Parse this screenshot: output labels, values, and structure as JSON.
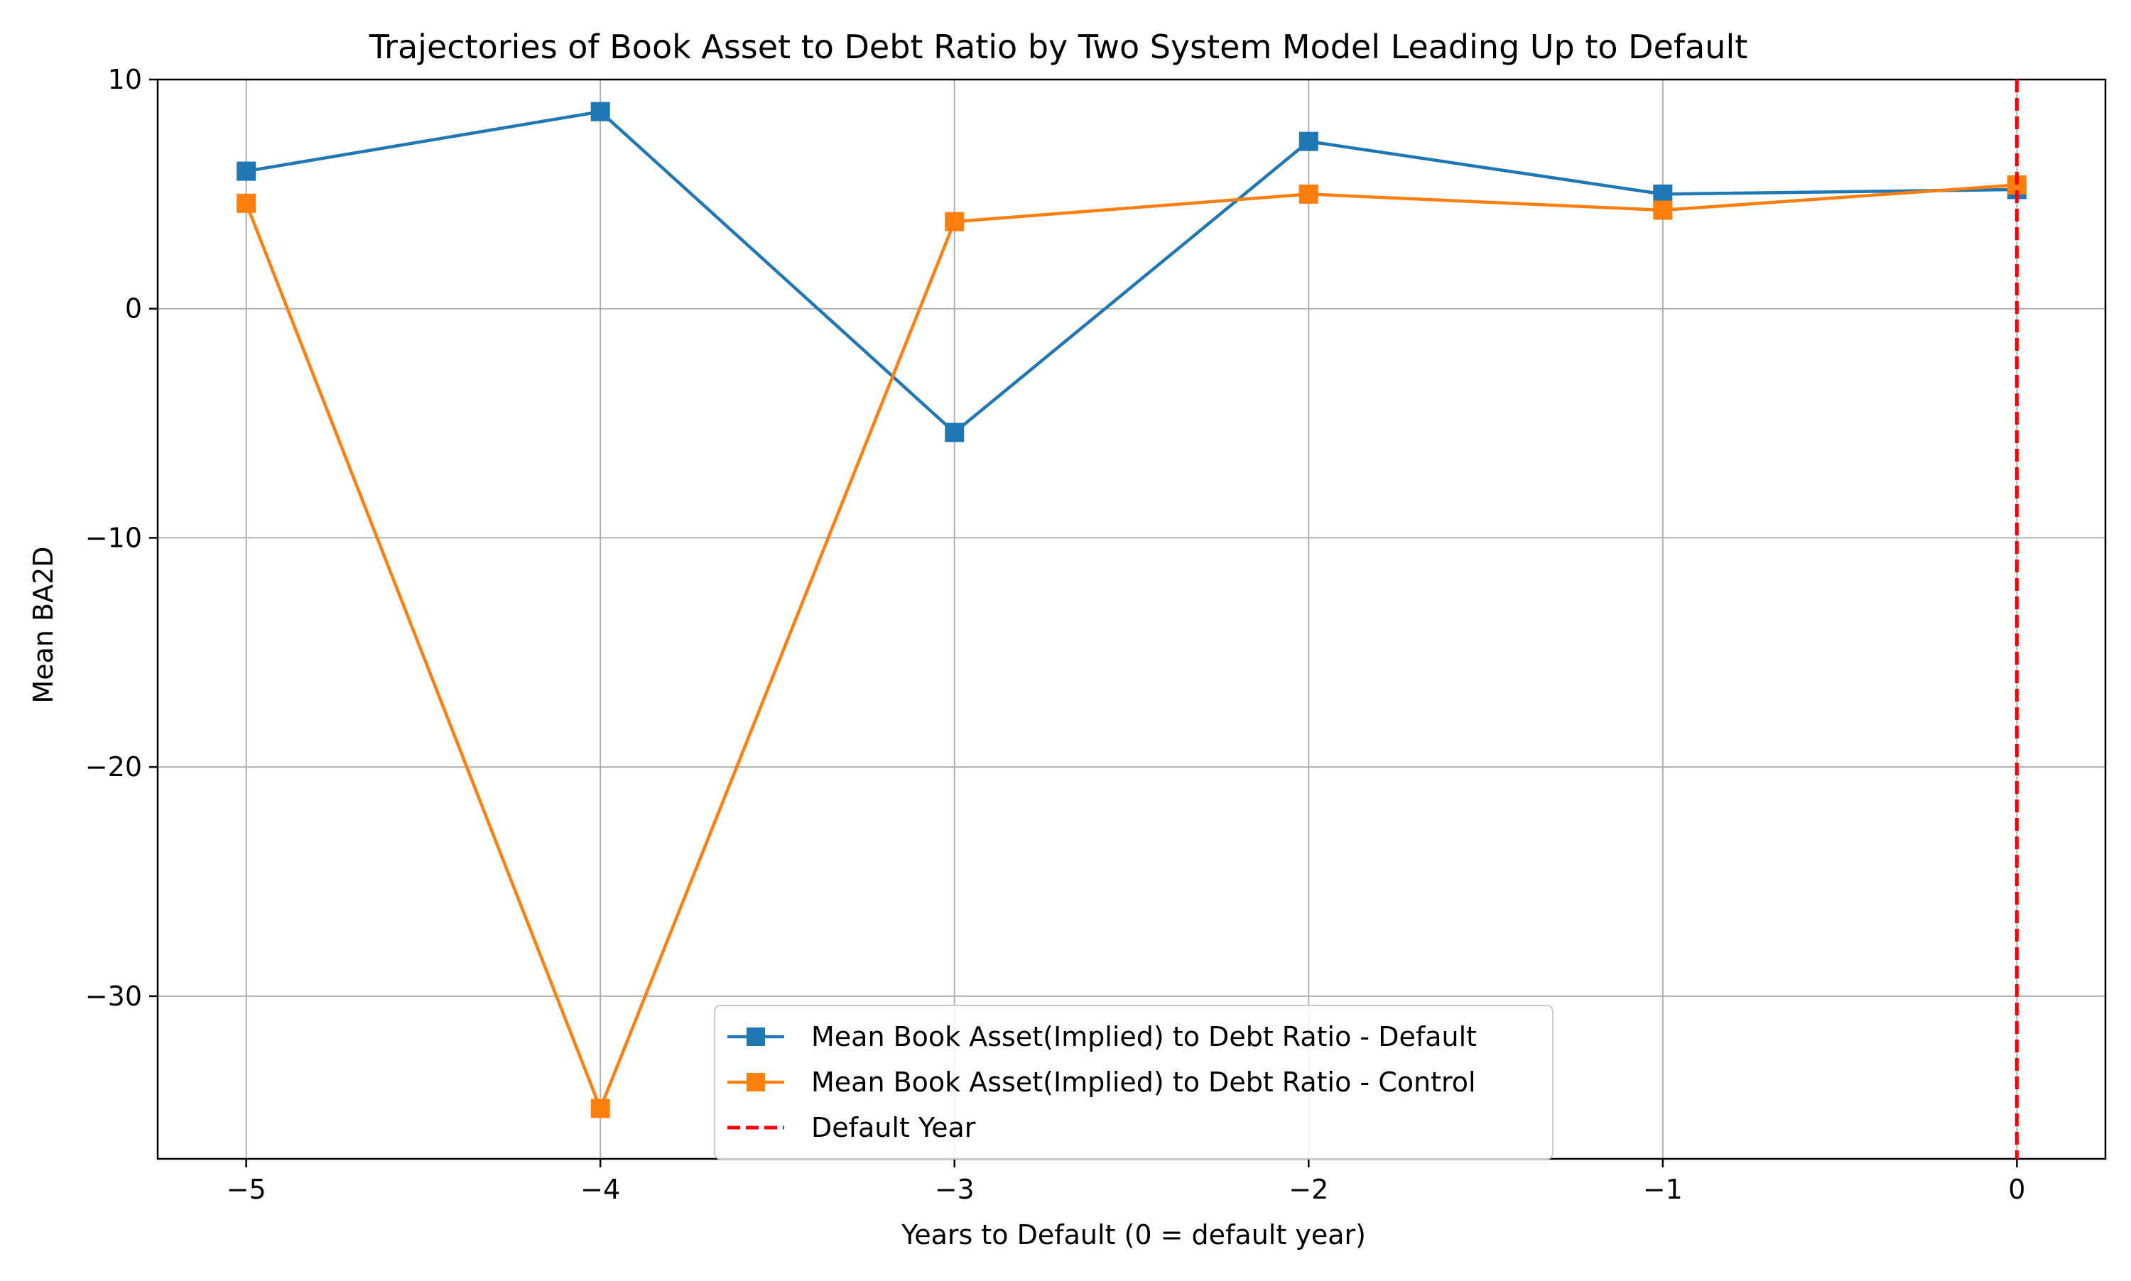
{
  "chart_data": {
    "type": "line",
    "title": "Trajectories of Book Asset to Debt Ratio by Two System Model Leading Up to Default",
    "xlabel": "Years to Default (0 = default year)",
    "ylabel": "Mean BA2D",
    "x": [
      -5,
      -4,
      -3,
      -2,
      -1,
      0
    ],
    "xlim": [
      -5.25,
      0.25
    ],
    "ylim": [
      -37.1,
      10.0
    ],
    "x_ticks": [
      -5,
      -4,
      -3,
      -2,
      -1,
      0
    ],
    "x_tick_labels": [
      "−5",
      "−4",
      "−3",
      "−2",
      "−1",
      "0"
    ],
    "y_ticks": [
      10,
      0,
      -10,
      -20,
      -30
    ],
    "y_tick_labels": [
      "10",
      "0",
      "−10",
      "−20",
      "−30"
    ],
    "grid": true,
    "legend_position": "lower center",
    "series": [
      {
        "name": "Mean Book Asset(Implied) to Debt Ratio - Default",
        "color": "#1f77b4",
        "marker": "square",
        "values": [
          6.0,
          8.6,
          -5.4,
          7.3,
          5.0,
          5.2
        ]
      },
      {
        "name": "Mean Book Asset(Implied) to Debt Ratio - Control",
        "color": "#ff7f0e",
        "marker": "square",
        "values": [
          4.6,
          -34.9,
          3.8,
          5.0,
          4.3,
          5.4
        ]
      }
    ],
    "reference_lines": [
      {
        "name": "Default Year",
        "x": 0,
        "color": "#ff0000",
        "style": "dashed"
      }
    ]
  }
}
